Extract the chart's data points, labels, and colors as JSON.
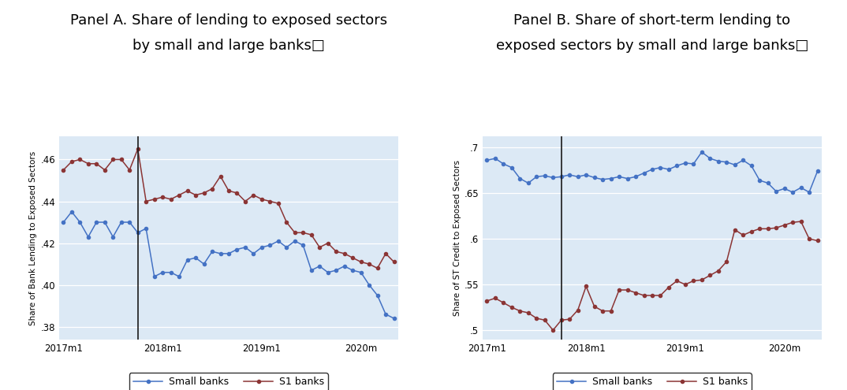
{
  "panel_a": {
    "title_line1": "Panel A. Share of lending to exposed sectors",
    "title_line2": "by small and large banks□",
    "ylabel": "Share of Bank Lending to Exposed Sectors",
    "xlabel_ticks": [
      "2017m1",
      "2018m1",
      "2019m1",
      "2020m"
    ],
    "xtick_positions": [
      0,
      12,
      24,
      36
    ],
    "vline_x": 9,
    "ylim": [
      0.374,
      0.471
    ],
    "yticks": [
      0.38,
      0.4,
      0.42,
      0.44,
      0.46
    ],
    "ytick_labels": [
      ".38",
      ".40",
      ".42",
      ".44",
      ".46"
    ],
    "small_banks": [
      0.43,
      0.435,
      0.43,
      0.423,
      0.43,
      0.43,
      0.423,
      0.43,
      0.43,
      0.425,
      0.427,
      0.404,
      0.406,
      0.406,
      0.404,
      0.412,
      0.413,
      0.41,
      0.416,
      0.415,
      0.415,
      0.417,
      0.418,
      0.415,
      0.418,
      0.419,
      0.421,
      0.418,
      0.421,
      0.419,
      0.407,
      0.409,
      0.406,
      0.407,
      0.409,
      0.407,
      0.406,
      0.4,
      0.395,
      0.386,
      0.384
    ],
    "s1_banks": [
      0.455,
      0.459,
      0.46,
      0.458,
      0.458,
      0.455,
      0.46,
      0.46,
      0.455,
      0.465,
      0.44,
      0.441,
      0.442,
      0.441,
      0.443,
      0.445,
      0.443,
      0.444,
      0.446,
      0.452,
      0.445,
      0.444,
      0.44,
      0.443,
      0.441,
      0.44,
      0.439,
      0.43,
      0.425,
      0.425,
      0.424,
      0.418,
      0.42,
      0.416,
      0.415,
      0.413,
      0.411,
      0.41,
      0.408,
      0.415,
      0.411
    ]
  },
  "panel_b": {
    "title_line1": "Panel B. Share of short-term lending to",
    "title_line2": "exposed sectors by small and large banks□",
    "ylabel": "Share of ST Credit to Exposed Sectors",
    "xlabel_ticks": [
      "2017m1",
      "2018m1",
      "2019m1",
      "2020m"
    ],
    "xtick_positions": [
      0,
      12,
      24,
      36
    ],
    "vline_x": 9,
    "ylim": [
      0.49,
      0.712
    ],
    "yticks": [
      0.5,
      0.55,
      0.6,
      0.65,
      0.7
    ],
    "ytick_labels": [
      ".5",
      ".55",
      ".6",
      ".65",
      ".7"
    ],
    "small_banks": [
      0.686,
      0.688,
      0.682,
      0.678,
      0.666,
      0.661,
      0.668,
      0.669,
      0.667,
      0.668,
      0.67,
      0.668,
      0.67,
      0.667,
      0.665,
      0.666,
      0.668,
      0.666,
      0.668,
      0.672,
      0.676,
      0.678,
      0.676,
      0.68,
      0.683,
      0.682,
      0.695,
      0.688,
      0.685,
      0.684,
      0.681,
      0.686,
      0.68,
      0.664,
      0.661,
      0.652,
      0.655,
      0.651,
      0.656,
      0.651,
      0.674
    ],
    "s1_banks": [
      0.532,
      0.535,
      0.53,
      0.525,
      0.521,
      0.519,
      0.513,
      0.511,
      0.5,
      0.511,
      0.512,
      0.522,
      0.548,
      0.526,
      0.521,
      0.521,
      0.544,
      0.544,
      0.541,
      0.538,
      0.538,
      0.538,
      0.547,
      0.554,
      0.55,
      0.554,
      0.555,
      0.56,
      0.565,
      0.575,
      0.61,
      0.604,
      0.608,
      0.611,
      0.611,
      0.612,
      0.615,
      0.618,
      0.619,
      0.6,
      0.598
    ]
  },
  "small_banks_color": "#4472c4",
  "s1_banks_color": "#8b3535",
  "background_color": "#dce9f5",
  "fig_background": "#ffffff",
  "vline_color": "#1a1a1a",
  "markersize": 3,
  "linewidth": 1.1,
  "legend_small": "Small banks",
  "legend_s1": "S1 banks",
  "title_fontsize": 13,
  "ylabel_fontsize": 7.5,
  "tick_fontsize": 8.5,
  "legend_fontsize": 9
}
